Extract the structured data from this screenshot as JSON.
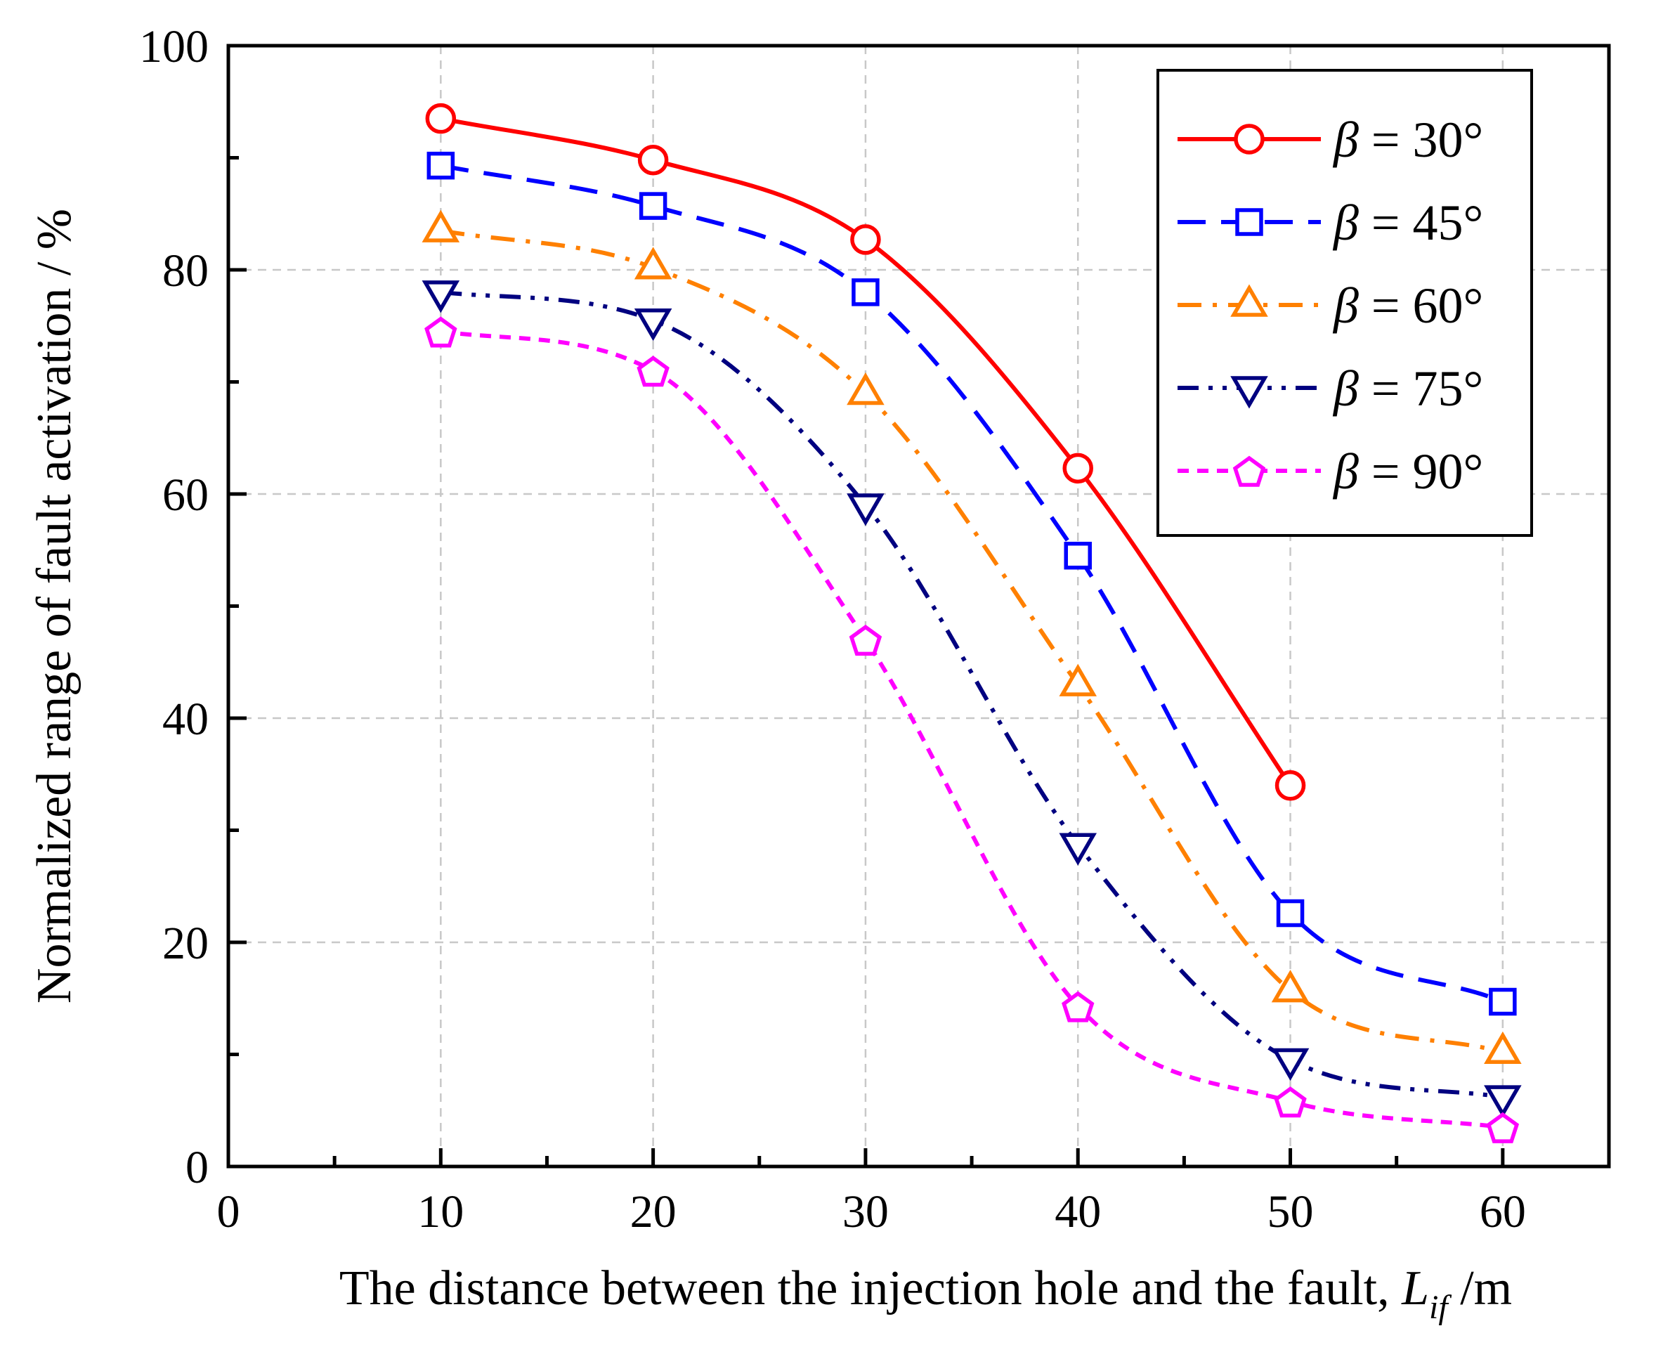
{
  "chart_data": {
    "type": "line",
    "title": "",
    "xlabel": "The distance between the injection hole and the fault, ",
    "xlabel_symbol": "L",
    "xlabel_subscript": "if",
    "xlabel_unit": " /m",
    "ylabel": "Normalized range of fault activation / %",
    "xlim": [
      0,
      65
    ],
    "ylim": [
      0,
      100
    ],
    "xticks": [
      0,
      10,
      20,
      30,
      40,
      50,
      60
    ],
    "yticks": [
      0,
      20,
      40,
      60,
      80,
      100
    ],
    "grid": true,
    "legend_position": "top-right",
    "series": [
      {
        "name": "β = 30°",
        "symbol": "β",
        "label_rest": " = 30°",
        "color": "#ff0000",
        "marker": "circle",
        "dash": "solid",
        "x": [
          10,
          20,
          30,
          40,
          50
        ],
        "values": [
          93.5,
          89.8,
          82.7,
          62.3,
          34.0
        ]
      },
      {
        "name": "β = 45°",
        "symbol": "β",
        "label_rest": " = 45°",
        "color": "#0000ff",
        "marker": "square",
        "dash": "dash",
        "x": [
          10,
          20,
          30,
          40,
          50,
          60
        ],
        "values": [
          89.3,
          85.7,
          78.0,
          54.5,
          22.6,
          14.7
        ]
      },
      {
        "name": "β = 60°",
        "symbol": "β",
        "label_rest": " = 60°",
        "color": "#ff8000",
        "marker": "triangle-up",
        "dash": "dashdot",
        "x": [
          10,
          20,
          30,
          40,
          50,
          60
        ],
        "values": [
          83.5,
          80.2,
          69.0,
          43.0,
          15.7,
          10.2
        ]
      },
      {
        "name": "β = 75°",
        "symbol": "β",
        "label_rest": " = 75°",
        "color": "#000080",
        "marker": "triangle-down",
        "dash": "dashdotdot",
        "x": [
          10,
          20,
          30,
          40,
          50,
          60
        ],
        "values": [
          78.0,
          75.5,
          59.0,
          28.7,
          9.5,
          6.2
        ]
      },
      {
        "name": "β = 90°",
        "symbol": "β",
        "label_rest": " = 90°",
        "color": "#ff00ff",
        "marker": "pentagon",
        "dash": "shortdash",
        "x": [
          10,
          20,
          30,
          40,
          50,
          60
        ],
        "values": [
          74.5,
          71.0,
          47.0,
          14.3,
          5.8,
          3.5
        ]
      }
    ]
  }
}
